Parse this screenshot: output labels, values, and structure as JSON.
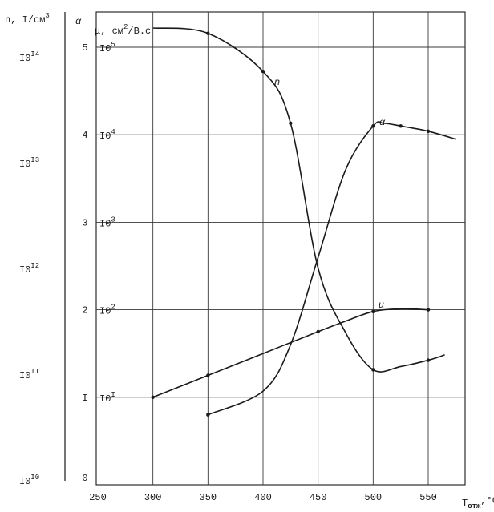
{
  "chart_data": {
    "type": "line",
    "x_axis": {
      "ticks": [
        250,
        300,
        350,
        400,
        450,
        500,
        550
      ],
      "range": [
        250,
        580
      ],
      "label_main": "T",
      "label_sub": "отж",
      "label_unit": ",°C"
    },
    "n_axis": {
      "label_main": "n, I/см",
      "label_sup": "3",
      "ticks": [
        {
          "value": 10,
          "mant": "I0",
          "exp": "I0"
        },
        {
          "value": 11,
          "mant": "I0",
          "exp": "II"
        },
        {
          "value": 12,
          "mant": "I0",
          "exp": "I2"
        },
        {
          "value": 13,
          "mant": "I0",
          "exp": "I3"
        },
        {
          "value": 14,
          "mant": "I0",
          "exp": "I4"
        }
      ]
    },
    "alpha_axis": {
      "label": "α",
      "ticks": [
        "0",
        "I",
        "2",
        "3",
        "4",
        "5"
      ]
    },
    "mu_axis": {
      "label_main": "μ, см",
      "label_sup": "2",
      "label_tail": "/B.c",
      "ticks": [
        {
          "value": 1,
          "mant": "I0",
          "exp": "I"
        },
        {
          "value": 2,
          "mant": "I0",
          "exp": "2"
        },
        {
          "value": 3,
          "mant": "I0",
          "exp": "3"
        },
        {
          "value": 4,
          "mant": "I0",
          "exp": "4"
        },
        {
          "value": 5,
          "mant": "I0",
          "exp": "5"
        }
      ]
    },
    "series": [
      {
        "name": "n",
        "unit": "lg n",
        "points": [
          [
            300,
            14.28
          ],
          [
            350,
            14.23
          ],
          [
            400,
            13.87
          ],
          [
            425,
            13.38
          ],
          [
            450,
            12.01
          ],
          [
            475,
            11.4
          ],
          [
            500,
            11.05
          ],
          [
            525,
            11.08
          ],
          [
            550,
            11.14
          ],
          [
            565,
            11.19
          ]
        ],
        "markers": [
          [
            350,
            14.23
          ],
          [
            400,
            13.87
          ],
          [
            425,
            13.38
          ],
          [
            500,
            11.05
          ],
          [
            550,
            11.14
          ]
        ]
      },
      {
        "name": "α",
        "unit": "α",
        "points": [
          [
            350,
            0.8
          ],
          [
            400,
            1.07
          ],
          [
            425,
            1.6
          ],
          [
            450,
            2.6
          ],
          [
            475,
            3.6
          ],
          [
            500,
            4.1
          ],
          [
            510,
            4.13
          ],
          [
            525,
            4.1
          ],
          [
            550,
            4.04
          ],
          [
            575,
            3.95
          ]
        ],
        "markers": [
          [
            350,
            0.8
          ],
          [
            500,
            4.1
          ],
          [
            525,
            4.1
          ],
          [
            550,
            4.04
          ]
        ]
      },
      {
        "name": "μ",
        "unit": "lg μ",
        "points": [
          [
            300,
            1.0
          ],
          [
            350,
            1.25
          ],
          [
            400,
            1.5
          ],
          [
            450,
            1.75
          ],
          [
            475,
            1.87
          ],
          [
            500,
            1.98
          ],
          [
            525,
            2.01
          ],
          [
            550,
            2.0
          ]
        ],
        "markers": [
          [
            300,
            1.0
          ],
          [
            350,
            1.25
          ],
          [
            450,
            1.75
          ],
          [
            500,
            1.98
          ],
          [
            550,
            2.0
          ]
        ]
      }
    ]
  }
}
